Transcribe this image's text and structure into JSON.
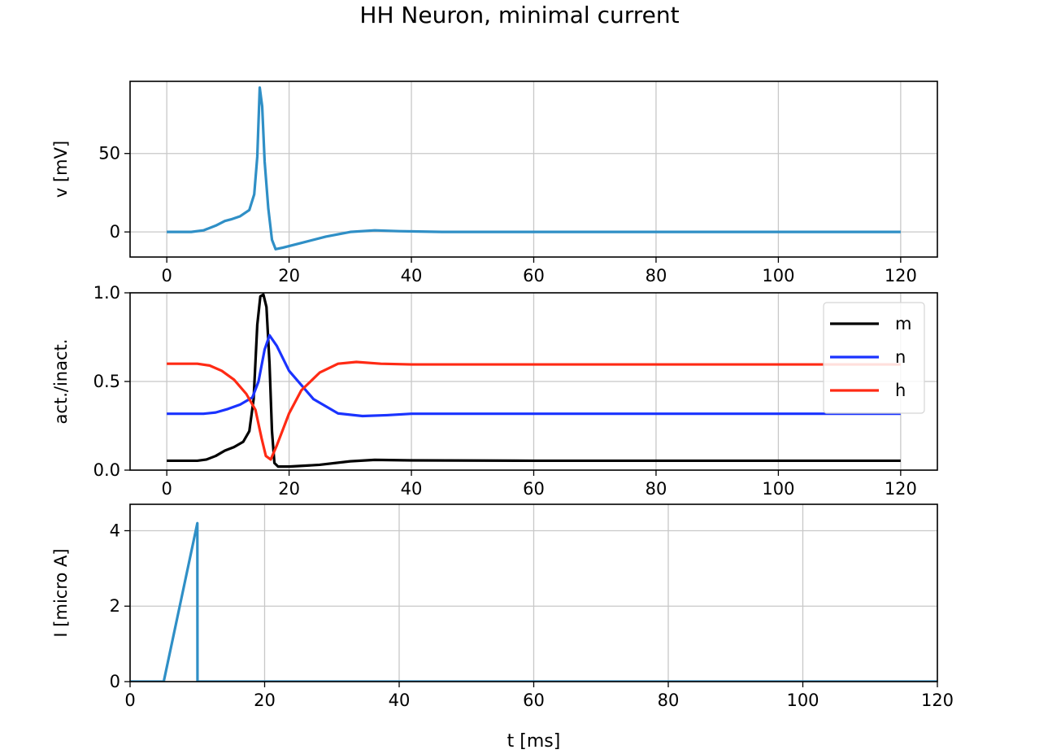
{
  "figure_title": "HH Neuron, minimal current",
  "colors": {
    "v": "#2f8fc6",
    "m": "#000000",
    "n": "#1a33ff",
    "h": "#ff2a14",
    "I": "#2f8fc6",
    "grid": "#c8c8c8"
  },
  "chart_data": [
    {
      "type": "line",
      "title": "",
      "xlabel": "",
      "ylabel": "v [mV]",
      "xlim": [
        -6,
        126
      ],
      "ylim": [
        -16,
        96
      ],
      "xticks": [
        0,
        20,
        40,
        60,
        80,
        100,
        120
      ],
      "yticks": [
        0,
        50
      ],
      "grid": true,
      "legend": "none",
      "series": [
        {
          "key": "v",
          "x": [
            0,
            4,
            6,
            8,
            9.5,
            10.5,
            12,
            13.5,
            14.3,
            14.8,
            15.2,
            15.6,
            16,
            16.6,
            17.2,
            17.8,
            19,
            22,
            26,
            30,
            34,
            38,
            45,
            60,
            80,
            100,
            120
          ],
          "y": [
            0,
            0,
            1,
            4,
            7,
            8,
            10,
            14,
            24,
            48,
            92,
            80,
            45,
            15,
            -5,
            -11,
            -10,
            -7,
            -3,
            0,
            1,
            0.5,
            0,
            0,
            0,
            0,
            0
          ]
        }
      ]
    },
    {
      "type": "line",
      "title": "",
      "xlabel": "",
      "ylabel": "act./inact.",
      "xlim": [
        -6,
        126
      ],
      "ylim": [
        0,
        1.0
      ],
      "xticks": [
        0,
        20,
        40,
        60,
        80,
        100,
        120
      ],
      "yticks": [
        0.0,
        0.5,
        1.0
      ],
      "ytick_labels": [
        "0.0",
        "0.5",
        "1.0"
      ],
      "grid": true,
      "legend": "upper right",
      "series": [
        {
          "key": "m",
          "name": "m",
          "x": [
            0,
            5,
            6.5,
            8,
            9.5,
            11,
            12.5,
            13.5,
            14.2,
            14.8,
            15.3,
            15.8,
            16.3,
            16.8,
            17.2,
            17.6,
            18.2,
            20,
            25,
            30,
            34,
            40,
            60,
            80,
            100,
            120
          ],
          "y": [
            0.053,
            0.053,
            0.06,
            0.08,
            0.11,
            0.13,
            0.16,
            0.22,
            0.4,
            0.82,
            0.98,
            0.99,
            0.92,
            0.6,
            0.22,
            0.04,
            0.02,
            0.02,
            0.03,
            0.05,
            0.058,
            0.055,
            0.053,
            0.053,
            0.053,
            0.053
          ]
        },
        {
          "key": "n",
          "name": "n",
          "x": [
            0,
            6,
            8,
            10,
            12,
            14,
            15,
            16,
            16.8,
            18,
            20,
            24,
            28,
            32,
            36,
            40,
            60,
            80,
            100,
            120
          ],
          "y": [
            0.318,
            0.318,
            0.325,
            0.345,
            0.37,
            0.41,
            0.5,
            0.68,
            0.76,
            0.7,
            0.56,
            0.4,
            0.32,
            0.305,
            0.31,
            0.318,
            0.318,
            0.318,
            0.318,
            0.318
          ]
        },
        {
          "key": "h",
          "name": "h",
          "x": [
            0,
            5,
            7,
            9,
            11,
            13,
            14.5,
            15.5,
            16.2,
            17,
            18,
            20,
            22,
            25,
            28,
            31,
            35,
            40,
            60,
            80,
            100,
            120
          ],
          "y": [
            0.6,
            0.6,
            0.59,
            0.56,
            0.51,
            0.43,
            0.34,
            0.18,
            0.08,
            0.06,
            0.14,
            0.32,
            0.45,
            0.55,
            0.6,
            0.61,
            0.6,
            0.596,
            0.596,
            0.596,
            0.596,
            0.596
          ]
        }
      ]
    },
    {
      "type": "line",
      "title": "",
      "xlabel": "t [ms]",
      "ylabel": "I [micro A]",
      "xlim": [
        0,
        120
      ],
      "ylim": [
        0,
        4.7
      ],
      "xticks": [
        0,
        20,
        40,
        60,
        80,
        100,
        120
      ],
      "yticks": [
        0,
        2,
        4
      ],
      "grid": true,
      "legend": "none",
      "series": [
        {
          "key": "I",
          "x": [
            0,
            5,
            10,
            10.02,
            120
          ],
          "y": [
            0,
            0,
            4.2,
            0,
            0
          ]
        }
      ]
    }
  ]
}
